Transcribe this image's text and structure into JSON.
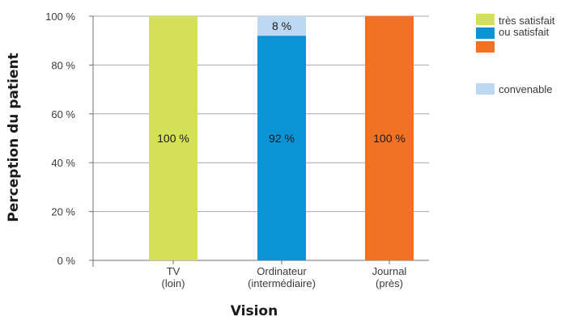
{
  "chart_data": {
    "type": "bar",
    "stacked": true,
    "categories": [
      [
        "TV",
        "(loin)"
      ],
      [
        "Ordinateur",
        "(intermédiaire)"
      ],
      [
        "Journal",
        "(près)"
      ]
    ],
    "series": [
      {
        "name": "très satisfait ou satisfait",
        "values": [
          100,
          92,
          100
        ],
        "labels": [
          "100 %",
          "92 %",
          "100 %"
        ],
        "colors": [
          "#d4df5a",
          "#0b93d6",
          "#f07225"
        ]
      },
      {
        "name": "convenable",
        "values": [
          0,
          8,
          0
        ],
        "labels": [
          "",
          "8 %",
          ""
        ],
        "colors": [
          "#bdd8f1",
          "#bdd8f1",
          "#bdd8f1"
        ]
      }
    ],
    "xlabel": "Vision",
    "ylabel": "Perception du patient",
    "ylim": [
      0,
      100
    ],
    "yticks": [
      0,
      20,
      40,
      60,
      80,
      100
    ],
    "ytick_labels": [
      "0 %",
      "20 %",
      "40 %",
      "60 %",
      "80 %",
      "100 %"
    ],
    "grid": true,
    "legend": {
      "placement": "right",
      "entries": [
        {
          "lines": [
            "très satisfait",
            "ou satisfait"
          ],
          "swatches": [
            "#d4df5a",
            "#0b93d6",
            "#f07225"
          ]
        },
        {
          "lines": [
            "convenable"
          ],
          "swatches": [
            "#bdd8f1"
          ]
        }
      ]
    }
  }
}
